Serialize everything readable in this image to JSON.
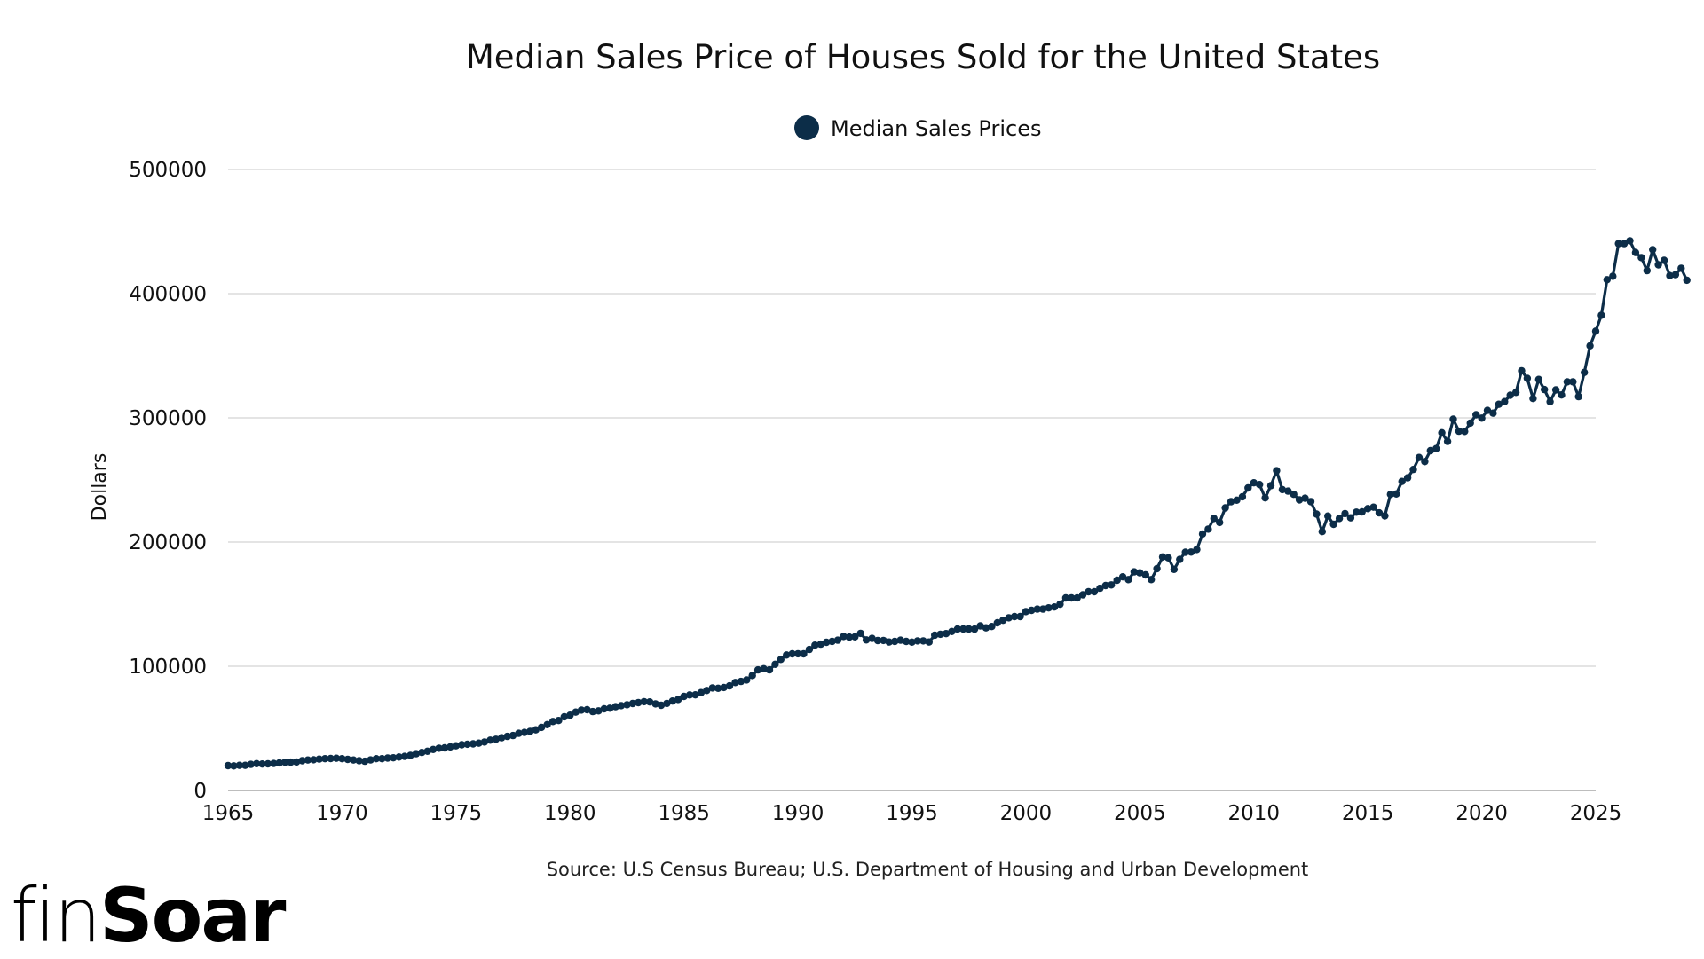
{
  "brand": {
    "prefix": "fin",
    "suffix": "Soar"
  },
  "chart_data": {
    "type": "line",
    "title": "Median Sales Price of Houses Sold for the United States",
    "xlabel": "",
    "ylabel": "Dollars",
    "source": "Source: U.S Census Bureau; U.S. Department of Housing and Urban Development",
    "legend": {
      "position": "top-center",
      "entries": [
        {
          "name": "Median Sales Prices",
          "color": "#0c2d48"
        }
      ]
    },
    "xlim": [
      1965,
      2025
    ],
    "ylim": [
      0,
      500000
    ],
    "x_ticks": [
      1965,
      1970,
      1975,
      1980,
      1985,
      1990,
      1995,
      2000,
      2005,
      2010,
      2015,
      2020,
      2025
    ],
    "y_ticks": [
      0,
      100000,
      200000,
      300000,
      400000,
      500000
    ],
    "grid": true,
    "series": [
      {
        "name": "Median Sales Prices",
        "color": "#0c2d48",
        "frequency": "quarterly",
        "start": "1965Q1",
        "values": [
          20000,
          19800,
          20200,
          20200,
          21000,
          21600,
          21300,
          21400,
          21700,
          22200,
          22700,
          22800,
          22900,
          23900,
          24500,
          24700,
          25200,
          25600,
          25700,
          25900,
          25600,
          25000,
          24500,
          23900,
          23500,
          24600,
          25600,
          25600,
          26100,
          26300,
          26900,
          27400,
          28300,
          29600,
          30600,
          31600,
          33000,
          34000,
          34300,
          35100,
          35900,
          36800,
          37200,
          37500,
          38100,
          39000,
          40500,
          41200,
          42400,
          43500,
          44200,
          46000,
          46700,
          47600,
          48800,
          50800,
          53000,
          55500,
          56300,
          59300,
          60600,
          63100,
          64700,
          65000,
          63500,
          64100,
          65700,
          66200,
          67400,
          68300,
          69000,
          70000,
          70700,
          71500,
          71300,
          69700,
          68600,
          70100,
          72000,
          73300,
          75700,
          76900,
          77000,
          78800,
          80500,
          82600,
          82300,
          82900,
          84200,
          86900,
          87800,
          89000,
          92600,
          97100,
          98000,
          97100,
          101600,
          105500,
          109100,
          110000,
          110100,
          110000,
          113500,
          117000,
          117800,
          119300,
          120000,
          121000,
          124000,
          123500,
          123700,
          126500,
          121200,
          122400,
          120700,
          120800,
          119500,
          120000,
          121000,
          120000,
          119400,
          120400,
          120400,
          119500,
          125000,
          125800,
          126300,
          128000,
          130000,
          130000,
          130000,
          129900,
          132500,
          130900,
          132000,
          135000,
          137000,
          139000,
          140000,
          140000,
          144000,
          145000,
          146000,
          146000,
          147000,
          147700,
          149900,
          155000,
          155000,
          155000,
          157500,
          160000,
          160000,
          162800,
          165000,
          165500,
          169300,
          172000,
          169800,
          176000,
          175200,
          173600,
          169800,
          178600,
          188000,
          187300,
          178000,
          186000,
          191800,
          191900,
          194000,
          206500,
          210400,
          219000,
          215800,
          227500,
          232500,
          233700,
          236400,
          243600,
          247700,
          246300,
          235600,
          245400,
          257400,
          242200,
          241000,
          238400,
          233900,
          235300,
          232500,
          222500,
          208400,
          220900,
          214300,
          219000,
          222900,
          219500,
          224100,
          224300,
          226900,
          228100,
          223500,
          221100,
          238400,
          238700,
          248800,
          251700,
          258400,
          268100,
          264800,
          273600,
          275200,
          288000,
          281000,
          298900,
          289200,
          289100,
          295800,
          302500,
          299800,
          306000,
          303800,
          310900,
          313100,
          318200,
          320500,
          337900,
          331800,
          315600,
          330900,
          322800,
          313000,
          322500,
          318400,
          329000,
          329000,
          317100,
          336600,
          358000,
          369800,
          382600,
          411200,
          414000,
          440300,
          440300,
          442600,
          433100,
          429000,
          418500,
          435400,
          423200,
          426800,
          414500,
          415300,
          420400,
          410800
        ]
      }
    ]
  }
}
